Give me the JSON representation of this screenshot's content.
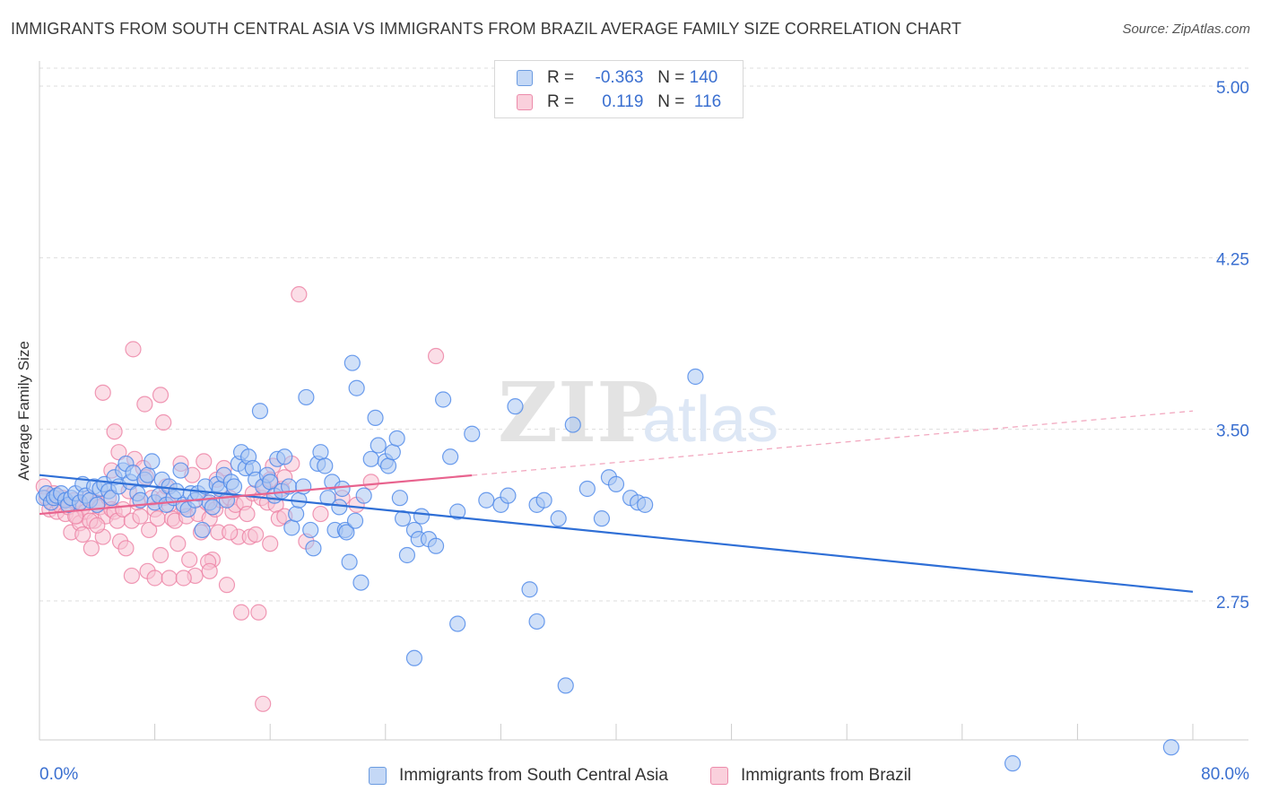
{
  "title": "IMMIGRANTS FROM SOUTH CENTRAL ASIA VS IMMIGRANTS FROM BRAZIL AVERAGE FAMILY SIZE CORRELATION CHART",
  "source": "Source: ZipAtlas.com",
  "watermark": {
    "zip": "ZIP",
    "atlas": "atlas"
  },
  "legend": {
    "rows": [
      {
        "r_label": "R =",
        "r_value": "-0.363",
        "n_label": "N =",
        "n_value": "140",
        "color": "#a9c6f2",
        "stroke": "#6b9be0"
      },
      {
        "r_label": "R =",
        "r_value": " 0.119",
        "n_label": "N =",
        "n_value": "116",
        "color": "#f7bfd0",
        "stroke": "#ec8bab"
      }
    ]
  },
  "colors": {
    "blue": "#4a86e8",
    "blue_fill": "#a9c6f2",
    "blue_line": "#2f6fd6",
    "pink": "#ec7fa2",
    "pink_fill": "#f7c3d3",
    "pink_line": "#e8638e",
    "tick_text": "#3a6fd0",
    "grid": "#dddddd"
  },
  "chart_data": {
    "type": "scatter",
    "title": "IMMIGRANTS FROM SOUTH CENTRAL ASIA VS IMMIGRANTS FROM BRAZIL AVERAGE FAMILY SIZE CORRELATION CHART",
    "xlabel": "",
    "ylabel": "Average Family Size",
    "xlim": [
      0,
      80
    ],
    "ylim": [
      2.0,
      5.08
    ],
    "x_tick_labels": [
      "0.0%",
      "80.0%"
    ],
    "y_ticks": [
      2.75,
      3.5,
      4.25,
      5.0
    ],
    "y_tick_labels": [
      "2.75",
      "3.50",
      "4.25",
      "5.00"
    ],
    "grid": true,
    "legend_position": "top-center",
    "series": [
      {
        "name": "Immigrants from South Central Asia",
        "r": -0.363,
        "n": 140,
        "trend": {
          "x0": 0,
          "y0": 3.3,
          "x1": 80,
          "y1": 2.79,
          "dashed_from": null
        },
        "points": [
          [
            0.3,
            3.2
          ],
          [
            0.5,
            3.22
          ],
          [
            0.8,
            3.18
          ],
          [
            1.0,
            3.2
          ],
          [
            1.2,
            3.21
          ],
          [
            1.5,
            3.22
          ],
          [
            1.8,
            3.19
          ],
          [
            2.0,
            3.17
          ],
          [
            2.2,
            3.2
          ],
          [
            2.5,
            3.22
          ],
          [
            2.8,
            3.18
          ],
          [
            3.0,
            3.26
          ],
          [
            3.2,
            3.21
          ],
          [
            3.5,
            3.19
          ],
          [
            3.8,
            3.25
          ],
          [
            4.0,
            3.17
          ],
          [
            4.2,
            3.24
          ],
          [
            4.5,
            3.26
          ],
          [
            4.8,
            3.23
          ],
          [
            5.0,
            3.2
          ],
          [
            5.2,
            3.29
          ],
          [
            5.5,
            3.25
          ],
          [
            5.8,
            3.32
          ],
          [
            6.0,
            3.35
          ],
          [
            6.3,
            3.27
          ],
          [
            6.5,
            3.31
          ],
          [
            6.8,
            3.22
          ],
          [
            7.0,
            3.19
          ],
          [
            7.3,
            3.28
          ],
          [
            7.5,
            3.3
          ],
          [
            7.8,
            3.36
          ],
          [
            8.0,
            3.18
          ],
          [
            8.3,
            3.21
          ],
          [
            8.5,
            3.28
          ],
          [
            8.8,
            3.17
          ],
          [
            9.0,
            3.25
          ],
          [
            9.3,
            3.2
          ],
          [
            9.5,
            3.23
          ],
          [
            9.8,
            3.32
          ],
          [
            10.0,
            3.17
          ],
          [
            10.3,
            3.15
          ],
          [
            10.5,
            3.22
          ],
          [
            10.8,
            3.19
          ],
          [
            11.0,
            3.22
          ],
          [
            11.3,
            3.06
          ],
          [
            11.5,
            3.25
          ],
          [
            11.8,
            3.18
          ],
          [
            12.0,
            3.16
          ],
          [
            12.3,
            3.26
          ],
          [
            12.5,
            3.24
          ],
          [
            12.8,
            3.3
          ],
          [
            13.0,
            3.19
          ],
          [
            13.3,
            3.27
          ],
          [
            13.5,
            3.25
          ],
          [
            13.8,
            3.35
          ],
          [
            14.0,
            3.4
          ],
          [
            14.3,
            3.33
          ],
          [
            14.5,
            3.38
          ],
          [
            14.8,
            3.33
          ],
          [
            15.0,
            3.28
          ],
          [
            15.3,
            3.58
          ],
          [
            15.5,
            3.25
          ],
          [
            15.8,
            3.3
          ],
          [
            16.0,
            3.27
          ],
          [
            16.3,
            3.21
          ],
          [
            16.5,
            3.37
          ],
          [
            16.8,
            3.23
          ],
          [
            17.0,
            3.38
          ],
          [
            17.3,
            3.25
          ],
          [
            17.5,
            3.07
          ],
          [
            17.8,
            3.13
          ],
          [
            18.0,
            3.19
          ],
          [
            18.3,
            3.25
          ],
          [
            18.5,
            3.64
          ],
          [
            18.8,
            3.06
          ],
          [
            19.0,
            2.98
          ],
          [
            19.3,
            3.35
          ],
          [
            19.5,
            3.4
          ],
          [
            19.8,
            3.34
          ],
          [
            20.0,
            3.2
          ],
          [
            20.3,
            3.27
          ],
          [
            20.5,
            3.06
          ],
          [
            20.8,
            3.16
          ],
          [
            21.0,
            3.24
          ],
          [
            21.2,
            3.06
          ],
          [
            21.3,
            3.05
          ],
          [
            21.5,
            2.92
          ],
          [
            21.7,
            3.79
          ],
          [
            21.9,
            3.1
          ],
          [
            22.0,
            3.68
          ],
          [
            22.3,
            2.83
          ],
          [
            22.5,
            3.21
          ],
          [
            23.0,
            3.37
          ],
          [
            23.3,
            3.55
          ],
          [
            23.5,
            3.43
          ],
          [
            24.0,
            3.36
          ],
          [
            24.2,
            3.34
          ],
          [
            24.5,
            3.4
          ],
          [
            24.8,
            3.46
          ],
          [
            25.0,
            3.2
          ],
          [
            25.2,
            3.11
          ],
          [
            25.5,
            2.95
          ],
          [
            26.0,
            3.06
          ],
          [
            26.3,
            3.02
          ],
          [
            26.5,
            3.12
          ],
          [
            27.0,
            3.02
          ],
          [
            27.5,
            2.99
          ],
          [
            28.0,
            3.63
          ],
          [
            28.5,
            3.38
          ],
          [
            29.0,
            3.14
          ],
          [
            30.0,
            3.48
          ],
          [
            31.0,
            3.19
          ],
          [
            32.0,
            3.17
          ],
          [
            32.5,
            3.21
          ],
          [
            33.0,
            3.6
          ],
          [
            34.0,
            2.8
          ],
          [
            34.5,
            3.17
          ],
          [
            35.0,
            3.19
          ],
          [
            36.0,
            3.11
          ],
          [
            37.0,
            3.52
          ],
          [
            38.0,
            3.24
          ],
          [
            39.0,
            3.11
          ],
          [
            39.5,
            3.29
          ],
          [
            40.0,
            3.26
          ],
          [
            41.0,
            3.2
          ],
          [
            41.5,
            3.18
          ],
          [
            42.0,
            3.17
          ],
          [
            45.5,
            3.73
          ],
          [
            34.5,
            2.66
          ],
          [
            36.5,
            2.38
          ],
          [
            26.0,
            2.5
          ],
          [
            29.0,
            2.65
          ],
          [
            67.5,
            2.04
          ],
          [
            78.5,
            2.11
          ]
        ]
      },
      {
        "name": "Immigrants from Brazil",
        "r": 0.119,
        "n": 116,
        "trend": {
          "x0": 0,
          "y0": 3.13,
          "x1": 80,
          "y1": 3.58,
          "dashed_from": 30
        },
        "points": [
          [
            0.3,
            3.25
          ],
          [
            0.5,
            3.2
          ],
          [
            0.7,
            3.15
          ],
          [
            0.9,
            3.18
          ],
          [
            1.0,
            3.22
          ],
          [
            1.2,
            3.14
          ],
          [
            1.4,
            3.17
          ],
          [
            1.6,
            3.2
          ],
          [
            1.8,
            3.13
          ],
          [
            2.0,
            3.16
          ],
          [
            2.2,
            3.05
          ],
          [
            2.4,
            3.19
          ],
          [
            2.6,
            3.12
          ],
          [
            2.8,
            3.09
          ],
          [
            3.0,
            3.16
          ],
          [
            3.2,
            3.14
          ],
          [
            3.4,
            3.2
          ],
          [
            3.6,
            2.98
          ],
          [
            3.8,
            3.1
          ],
          [
            4.0,
            3.18
          ],
          [
            4.2,
            3.16
          ],
          [
            4.4,
            3.03
          ],
          [
            4.6,
            3.12
          ],
          [
            4.8,
            3.2
          ],
          [
            5.0,
            3.15
          ],
          [
            5.2,
            3.14
          ],
          [
            5.4,
            3.1
          ],
          [
            5.6,
            3.01
          ],
          [
            5.8,
            3.15
          ],
          [
            6.0,
            2.98
          ],
          [
            6.2,
            3.23
          ],
          [
            6.4,
            3.1
          ],
          [
            6.6,
            3.37
          ],
          [
            6.8,
            3.18
          ],
          [
            7.0,
            3.12
          ],
          [
            7.2,
            3.33
          ],
          [
            7.4,
            3.29
          ],
          [
            7.6,
            3.06
          ],
          [
            7.8,
            3.2
          ],
          [
            8.0,
            3.15
          ],
          [
            8.2,
            3.11
          ],
          [
            8.4,
            2.95
          ],
          [
            8.6,
            3.2
          ],
          [
            8.8,
            3.25
          ],
          [
            9.0,
            3.17
          ],
          [
            9.2,
            3.11
          ],
          [
            9.4,
            3.1
          ],
          [
            9.6,
            3.0
          ],
          [
            9.8,
            3.35
          ],
          [
            10.0,
            3.16
          ],
          [
            10.2,
            3.12
          ],
          [
            10.4,
            2.93
          ],
          [
            10.6,
            3.3
          ],
          [
            10.8,
            2.86
          ],
          [
            11.0,
            3.13
          ],
          [
            11.2,
            3.05
          ],
          [
            11.4,
            3.36
          ],
          [
            11.6,
            3.18
          ],
          [
            11.8,
            3.11
          ],
          [
            12.0,
            2.93
          ],
          [
            12.2,
            3.15
          ],
          [
            12.4,
            3.05
          ],
          [
            12.6,
            3.19
          ],
          [
            12.8,
            3.33
          ],
          [
            13.0,
            2.82
          ],
          [
            13.2,
            3.2
          ],
          [
            13.4,
            3.14
          ],
          [
            13.6,
            3.17
          ],
          [
            13.8,
            3.03
          ],
          [
            14.0,
            2.7
          ],
          [
            14.2,
            3.18
          ],
          [
            14.4,
            3.13
          ],
          [
            14.6,
            3.03
          ],
          [
            14.8,
            3.22
          ],
          [
            15.0,
            3.04
          ],
          [
            15.2,
            2.7
          ],
          [
            15.4,
            3.2
          ],
          [
            15.6,
            3.25
          ],
          [
            15.8,
            3.18
          ],
          [
            16.0,
            3.0
          ],
          [
            16.2,
            3.34
          ],
          [
            16.4,
            3.17
          ],
          [
            16.6,
            3.11
          ],
          [
            16.8,
            3.24
          ],
          [
            17.0,
            3.29
          ],
          [
            17.5,
            3.35
          ],
          [
            4.4,
            3.66
          ],
          [
            5.2,
            3.49
          ],
          [
            5.5,
            3.4
          ],
          [
            5.0,
            3.32
          ],
          [
            6.5,
            3.85
          ],
          [
            7.3,
            3.61
          ],
          [
            8.6,
            3.53
          ],
          [
            8.4,
            3.65
          ],
          [
            6.4,
            2.86
          ],
          [
            7.5,
            2.88
          ],
          [
            8.0,
            2.85
          ],
          [
            9.0,
            2.85
          ],
          [
            10.0,
            2.85
          ],
          [
            11.7,
            2.92
          ],
          [
            11.8,
            2.88
          ],
          [
            12.3,
            3.28
          ],
          [
            13.2,
            3.05
          ],
          [
            15.5,
            2.3
          ],
          [
            16.0,
            3.28
          ],
          [
            17.0,
            3.12
          ],
          [
            18.5,
            3.01
          ],
          [
            19.5,
            3.13
          ],
          [
            21.0,
            3.2
          ],
          [
            22.0,
            3.17
          ],
          [
            23.0,
            3.27
          ],
          [
            18.0,
            4.09
          ],
          [
            27.5,
            3.82
          ],
          [
            3.5,
            3.1
          ],
          [
            4.0,
            3.08
          ],
          [
            2.5,
            3.12
          ],
          [
            3.0,
            3.04
          ]
        ]
      }
    ]
  },
  "axis_labels": {
    "x_left": "0.0%",
    "x_right": "80.0%"
  },
  "bottom_legend": [
    {
      "label": "Immigrants from South Central Asia"
    },
    {
      "label": "Immigrants from Brazil"
    }
  ]
}
